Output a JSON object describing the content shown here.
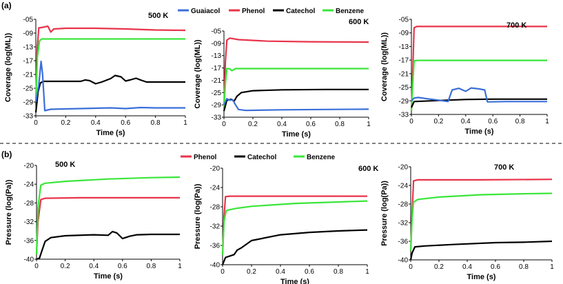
{
  "figure": {
    "panel_a": "(a)",
    "panel_b": "(b)",
    "legend_a": [
      {
        "name": "Guaiacol",
        "color": "#3a6fd8"
      },
      {
        "name": "Phenol",
        "color": "#e8334a"
      },
      {
        "name": "Catechol",
        "color": "#000000"
      },
      {
        "name": "Benzene",
        "color": "#39e639"
      }
    ],
    "legend_b": [
      {
        "name": "Phenol",
        "color": "#e8334a"
      },
      {
        "name": "Catechol",
        "color": "#000000"
      },
      {
        "name": "Benzene",
        "color": "#39e639"
      }
    ]
  },
  "chart_data": [
    {
      "type": "line",
      "title": "500 K",
      "xlabel": "Time (s)",
      "ylabel": "Coverage (log(ML))",
      "xlim": [
        0,
        1
      ],
      "ylim": [
        -33,
        -5
      ],
      "xticks": [
        "0",
        "0.2",
        "0.4",
        "0.6",
        "0.8",
        "1"
      ],
      "yticks": [
        "-05",
        "-09",
        "-13",
        "-17",
        "-21",
        "-25",
        "-29",
        "-33"
      ],
      "series": [
        {
          "name": "Phenol",
          "color": "#e8334a",
          "points": [
            [
              0,
              -29
            ],
            [
              0.01,
              -13
            ],
            [
              0.02,
              -7.5
            ],
            [
              0.05,
              -7.3
            ],
            [
              0.08,
              -7
            ],
            [
              0.1,
              -8.7
            ],
            [
              0.12,
              -7.8
            ],
            [
              0.2,
              -7.6
            ],
            [
              0.4,
              -7.6
            ],
            [
              0.6,
              -7.8
            ],
            [
              0.8,
              -8.1
            ],
            [
              1,
              -8.2
            ]
          ]
        },
        {
          "name": "Benzene",
          "color": "#39e639",
          "points": [
            [
              0,
              -29
            ],
            [
              0.01,
              -16
            ],
            [
              0.025,
              -11.2
            ],
            [
              0.04,
              -10.7
            ],
            [
              0.2,
              -10.7
            ],
            [
              1,
              -10.7
            ]
          ]
        },
        {
          "name": "Catechol",
          "color": "#000000",
          "points": [
            [
              0,
              -32
            ],
            [
              0.015,
              -26
            ],
            [
              0.03,
              -23.5
            ],
            [
              0.05,
              -23
            ],
            [
              0.3,
              -23
            ],
            [
              0.33,
              -22.6
            ],
            [
              0.36,
              -22.8
            ],
            [
              0.4,
              -23.7
            ],
            [
              0.44,
              -23.2
            ],
            [
              0.5,
              -22.2
            ],
            [
              0.53,
              -21.3
            ],
            [
              0.57,
              -21.7
            ],
            [
              0.6,
              -22.9
            ],
            [
              0.63,
              -22.6
            ],
            [
              0.67,
              -22.1
            ],
            [
              0.7,
              -22.6
            ],
            [
              0.74,
              -23.2
            ],
            [
              0.8,
              -23.2
            ],
            [
              1,
              -23.2
            ]
          ]
        },
        {
          "name": "Guaiacol",
          "color": "#3a6fd8",
          "points": [
            [
              0,
              -29
            ],
            [
              0.02,
              -24
            ],
            [
              0.035,
              -17.2
            ],
            [
              0.045,
              -21
            ],
            [
              0.06,
              -31.5
            ],
            [
              0.1,
              -31.1
            ],
            [
              0.3,
              -30.9
            ],
            [
              0.5,
              -30.7
            ],
            [
              0.6,
              -30.9
            ],
            [
              0.7,
              -30.6
            ],
            [
              0.8,
              -30.7
            ],
            [
              1,
              -30.7
            ]
          ]
        }
      ]
    },
    {
      "type": "line",
      "title": "600 K",
      "xlabel": "Time (s)",
      "ylabel": "Coverage (log(ML))",
      "xlim": [
        0,
        1
      ],
      "ylim": [
        -33,
        -5
      ],
      "xticks": [
        "0",
        "0.2",
        "0.4",
        "0.6",
        "0.8",
        "1"
      ],
      "yticks": [
        "-05",
        "-09",
        "-13",
        "-17",
        "-21",
        "-25",
        "-29",
        "-33"
      ],
      "series": [
        {
          "name": "Phenol",
          "color": "#e8334a",
          "points": [
            [
              0,
              -30
            ],
            [
              0.01,
              -15
            ],
            [
              0.02,
              -8
            ],
            [
              0.04,
              -7.3
            ],
            [
              0.1,
              -7.8
            ],
            [
              0.3,
              -8.3
            ],
            [
              0.6,
              -8.5
            ],
            [
              1,
              -8.6
            ]
          ]
        },
        {
          "name": "Benzene",
          "color": "#39e639",
          "points": [
            [
              0,
              -30
            ],
            [
              0.01,
              -22
            ],
            [
              0.02,
              -17.2
            ],
            [
              0.04,
              -17.3
            ],
            [
              0.055,
              -17.9
            ],
            [
              0.08,
              -17.2
            ],
            [
              1,
              -17.2
            ]
          ]
        },
        {
          "name": "Catechol",
          "color": "#000000",
          "points": [
            [
              0,
              -31
            ],
            [
              0.02,
              -27.5
            ],
            [
              0.05,
              -27.2
            ],
            [
              0.07,
              -27.8
            ],
            [
              0.09,
              -26.2
            ],
            [
              0.12,
              -25
            ],
            [
              0.2,
              -24.4
            ],
            [
              0.4,
              -24.1
            ],
            [
              0.7,
              -24.0
            ],
            [
              1,
              -24.0
            ]
          ]
        },
        {
          "name": "Guaiacol",
          "color": "#3a6fd8",
          "points": [
            [
              0,
              -29
            ],
            [
              0.02,
              -27
            ],
            [
              0.04,
              -27.5
            ],
            [
              0.06,
              -27.3
            ],
            [
              0.08,
              -29
            ],
            [
              0.1,
              -30.5
            ],
            [
              0.15,
              -30.8
            ],
            [
              0.4,
              -30.6
            ],
            [
              0.7,
              -30.5
            ],
            [
              1,
              -30.4
            ]
          ]
        }
      ]
    },
    {
      "type": "line",
      "title": "700 K",
      "xlabel": "Time (s)",
      "ylabel": "Coverage (log(ML))",
      "xlim": [
        0,
        1
      ],
      "ylim": [
        -33,
        -5
      ],
      "xticks": [
        "0",
        "0.2",
        "0.4",
        "0.6",
        "0.8",
        "1"
      ],
      "yticks": [
        "-05",
        "-09",
        "-13",
        "-17",
        "-21",
        "-25",
        "-29",
        "-33"
      ],
      "series": [
        {
          "name": "Phenol",
          "color": "#e8334a",
          "points": [
            [
              0,
              -32
            ],
            [
              0.01,
              -20
            ],
            [
              0.02,
              -7.5
            ],
            [
              0.04,
              -7.1
            ],
            [
              0.2,
              -7.1
            ],
            [
              1,
              -7.1
            ]
          ]
        },
        {
          "name": "Benzene",
          "color": "#39e639",
          "points": [
            [
              0,
              -32
            ],
            [
              0.01,
              -24
            ],
            [
              0.02,
              -17.2
            ],
            [
              0.05,
              -17.1
            ],
            [
              1,
              -17.1
            ]
          ]
        },
        {
          "name": "Catechol",
          "color": "#000000",
          "points": [
            [
              0,
              -31
            ],
            [
              0.02,
              -29.2
            ],
            [
              0.2,
              -28.9
            ],
            [
              0.4,
              -28.6
            ],
            [
              0.6,
              -28.5
            ],
            [
              1,
              -28.5
            ]
          ]
        },
        {
          "name": "Guaiacol",
          "color": "#3a6fd8",
          "points": [
            [
              0,
              -29
            ],
            [
              0.02,
              -28.2
            ],
            [
              0.05,
              -28
            ],
            [
              0.1,
              -28.3
            ],
            [
              0.2,
              -28.8
            ],
            [
              0.27,
              -29.2
            ],
            [
              0.3,
              -25.8
            ],
            [
              0.35,
              -25.3
            ],
            [
              0.4,
              -26.2
            ],
            [
              0.44,
              -25.2
            ],
            [
              0.5,
              -25.5
            ],
            [
              0.54,
              -25.8
            ],
            [
              0.56,
              -29.3
            ],
            [
              0.7,
              -29.2
            ],
            [
              1,
              -29.2
            ]
          ]
        }
      ]
    },
    {
      "type": "line",
      "title": "500 K",
      "xlabel": "Time (s)",
      "ylabel": "Pressure (log(Pa))",
      "xlim": [
        0,
        1
      ],
      "ylim": [
        -40,
        -20
      ],
      "xticks": [
        "0",
        "0.2",
        "0.4",
        "0.6",
        "0.8",
        "1"
      ],
      "yticks": [
        "-20",
        "-24",
        "-28",
        "-32",
        "-36",
        "-40"
      ],
      "series": [
        {
          "name": "Phenol",
          "color": "#e8334a",
          "points": [
            [
              0,
              -39
            ],
            [
              0.01,
              -32
            ],
            [
              0.03,
              -27.3
            ],
            [
              0.06,
              -27
            ],
            [
              0.3,
              -26.9
            ],
            [
              1,
              -26.9
            ]
          ]
        },
        {
          "name": "Benzene",
          "color": "#39e639",
          "points": [
            [
              0,
              -39
            ],
            [
              0.01,
              -29
            ],
            [
              0.03,
              -24.2
            ],
            [
              0.06,
              -23.8
            ],
            [
              0.2,
              -23.4
            ],
            [
              0.5,
              -22.9
            ],
            [
              0.8,
              -22.6
            ],
            [
              1,
              -22.5
            ]
          ]
        },
        {
          "name": "Catechol",
          "color": "#000000",
          "points": [
            [
              0,
              -40
            ],
            [
              0.02,
              -39.8
            ],
            [
              0.04,
              -38
            ],
            [
              0.06,
              -36.2
            ],
            [
              0.1,
              -35.4
            ],
            [
              0.2,
              -35
            ],
            [
              0.4,
              -34.8
            ],
            [
              0.5,
              -34.9
            ],
            [
              0.53,
              -34.1
            ],
            [
              0.56,
              -34.4
            ],
            [
              0.6,
              -35.6
            ],
            [
              0.65,
              -35.1
            ],
            [
              0.7,
              -34.8
            ],
            [
              0.8,
              -34.7
            ],
            [
              1,
              -34.7
            ]
          ]
        }
      ]
    },
    {
      "type": "line",
      "title": "600 K",
      "xlabel": "Time (s)",
      "ylabel": "Pressure (log(Pa))",
      "xlim": [
        0,
        1
      ],
      "ylim": [
        -40,
        -20
      ],
      "xticks": [
        "0",
        "0.2",
        "0.4",
        "0.6",
        "0.8",
        "1"
      ],
      "yticks": [
        "-20",
        "-24",
        "-28",
        "-32",
        "-36",
        "-40"
      ],
      "series": [
        {
          "name": "Phenol",
          "color": "#e8334a",
          "points": [
            [
              0,
              -38
            ],
            [
              0.01,
              -30
            ],
            [
              0.02,
              -25.9
            ],
            [
              0.05,
              -25.8
            ],
            [
              1,
              -25.8
            ]
          ]
        },
        {
          "name": "Benzene",
          "color": "#39e639",
          "points": [
            [
              0,
              -38
            ],
            [
              0.01,
              -31
            ],
            [
              0.025,
              -28.8
            ],
            [
              0.05,
              -28.6
            ],
            [
              0.1,
              -28.3
            ],
            [
              0.2,
              -27.9
            ],
            [
              0.5,
              -27.3
            ],
            [
              0.8,
              -27
            ],
            [
              1,
              -26.8
            ]
          ]
        },
        {
          "name": "Catechol",
          "color": "#000000",
          "points": [
            [
              0,
              -40
            ],
            [
              0.02,
              -38.5
            ],
            [
              0.05,
              -38.2
            ],
            [
              0.08,
              -37.9
            ],
            [
              0.1,
              -37
            ],
            [
              0.13,
              -36.5
            ],
            [
              0.2,
              -35
            ],
            [
              0.4,
              -33.8
            ],
            [
              0.6,
              -33.3
            ],
            [
              0.8,
              -33
            ],
            [
              1,
              -32.8
            ]
          ]
        }
      ]
    },
    {
      "type": "line",
      "title": "700 K",
      "xlabel": "Time (s)",
      "ylabel": "Pressure (log(Pa))",
      "xlim": [
        0,
        1
      ],
      "ylim": [
        -40,
        -20
      ],
      "xticks": [
        "0",
        "0.2",
        "0.4",
        "0.6",
        "0.8",
        "1"
      ],
      "yticks": [
        "-20",
        "-24",
        "-28",
        "-32",
        "-36",
        "-40"
      ],
      "series": [
        {
          "name": "Phenol",
          "color": "#e8334a",
          "points": [
            [
              0,
              -38
            ],
            [
              0.01,
              -30
            ],
            [
              0.02,
              -23
            ],
            [
              0.05,
              -22.8
            ],
            [
              0.5,
              -22.8
            ],
            [
              1,
              -22.7
            ]
          ]
        },
        {
          "name": "Benzene",
          "color": "#39e639",
          "points": [
            [
              0,
              -38
            ],
            [
              0.01,
              -31
            ],
            [
              0.02,
              -27.6
            ],
            [
              0.05,
              -27
            ],
            [
              0.2,
              -26.5
            ],
            [
              0.5,
              -26
            ],
            [
              0.8,
              -25.8
            ],
            [
              1,
              -25.7
            ]
          ]
        },
        {
          "name": "Catechol",
          "color": "#000000",
          "points": [
            [
              0,
              -40
            ],
            [
              0.01,
              -38.5
            ],
            [
              0.03,
              -37.2
            ],
            [
              0.1,
              -37
            ],
            [
              0.3,
              -36.7
            ],
            [
              0.6,
              -36.3
            ],
            [
              0.8,
              -36.2
            ],
            [
              1,
              -36
            ]
          ]
        }
      ]
    }
  ]
}
